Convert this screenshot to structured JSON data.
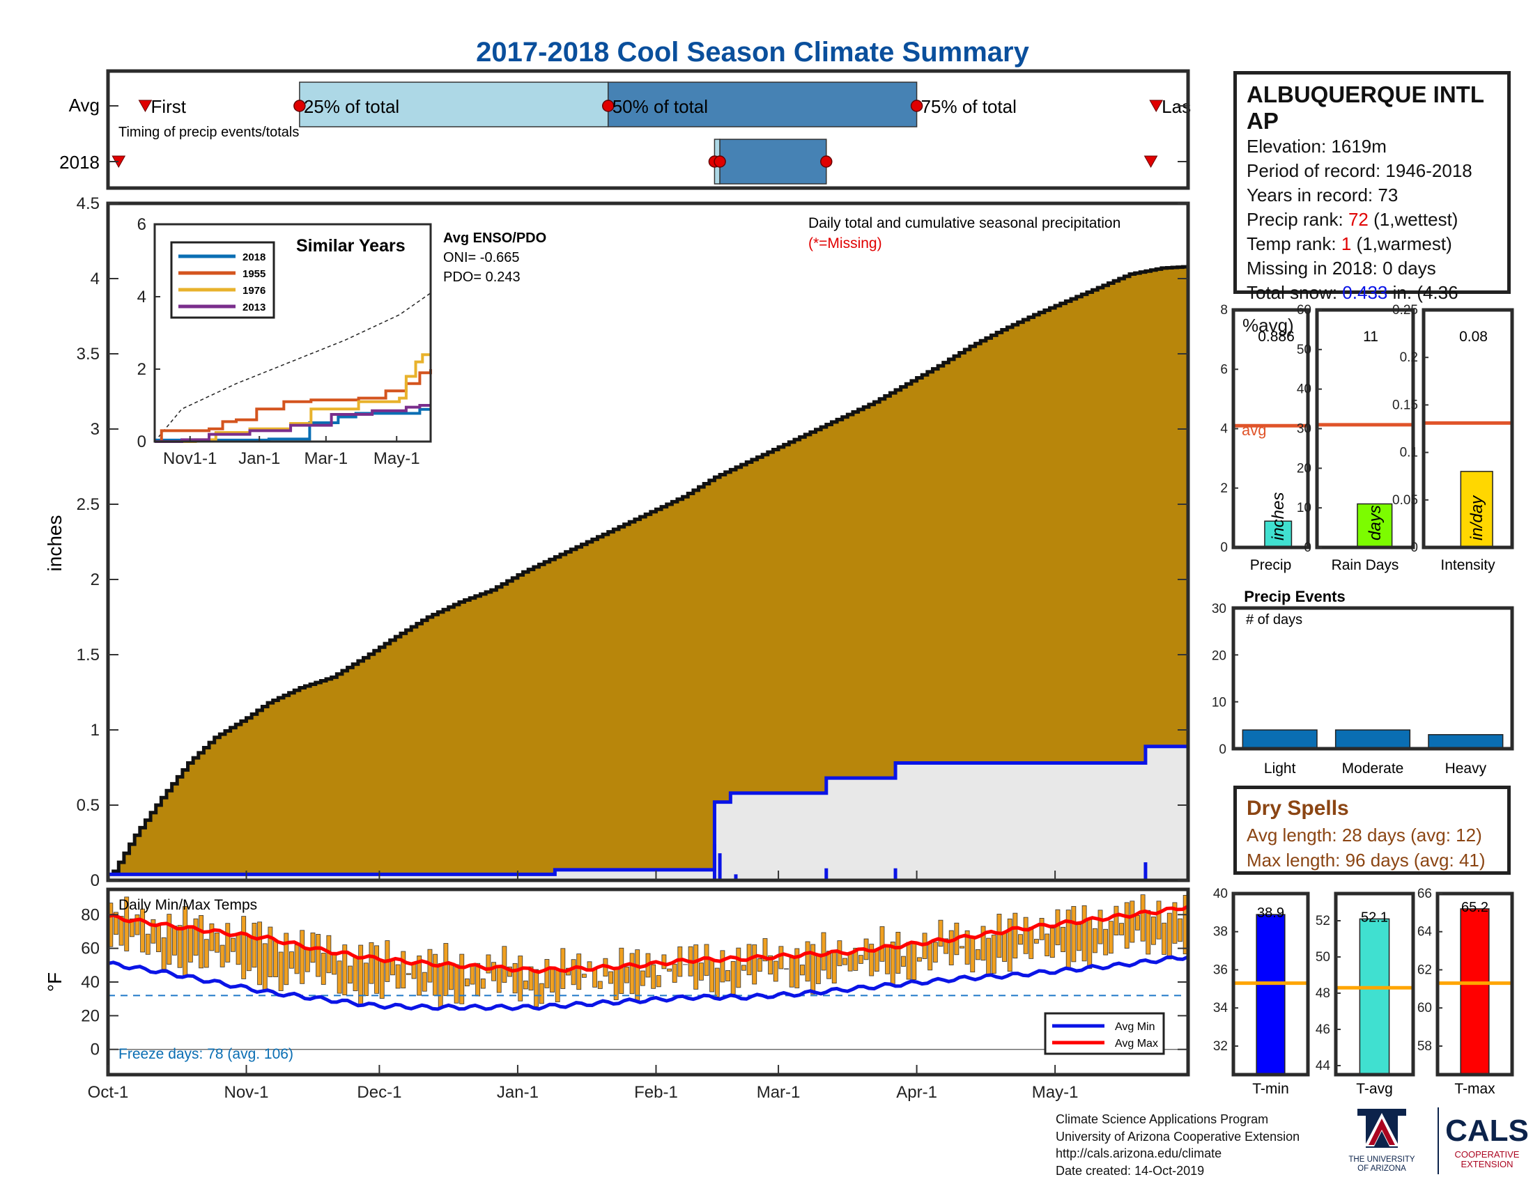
{
  "title": "2017-2018 Cool Season Climate Summary",
  "timing": {
    "row_labels": [
      "Avg",
      "2018"
    ],
    "note": "Timing of precip events/totals",
    "markers": {
      "first": "First",
      "q25": "25% of total",
      "q50": "50% of total",
      "q75": "75% of total",
      "last": "Las"
    },
    "avg_days": {
      "first": 7,
      "q25": 36,
      "q50": 94,
      "q75": 152,
      "last": 197
    },
    "y2018_days": {
      "first": 2,
      "q25": 114,
      "q50": 115,
      "q75": 135,
      "last": 196
    }
  },
  "chart_data": [
    {
      "type": "area",
      "name": "cumulative-precip",
      "ylabel": "inches",
      "ylim": [
        0,
        4.5
      ],
      "yticks": [
        "0",
        "0.5",
        "1",
        "1.5",
        "2",
        "2.5",
        "3",
        "3.5",
        "4",
        "4.5"
      ],
      "xlim": [
        0,
        203
      ],
      "xticks": [
        {
          "label": "Oct-1",
          "day": 0
        },
        {
          "label": "Nov-1",
          "day": 26
        },
        {
          "label": "Dec-1",
          "day": 51
        },
        {
          "label": "Jan-1",
          "day": 77
        },
        {
          "label": "Feb-1",
          "day": 103
        },
        {
          "label": "Mar-1",
          "day": 126
        },
        {
          "label": "Apr-1",
          "day": 152
        },
        {
          "label": "May-1",
          "day": 178
        }
      ],
      "annotation": "Daily total and cumulative seasonal precipitation",
      "missing_note": "(*=Missing)",
      "avg_cumulative": [
        [
          0,
          0
        ],
        [
          5,
          0.3
        ],
        [
          10,
          0.55
        ],
        [
          15,
          0.78
        ],
        [
          20,
          0.95
        ],
        [
          26,
          1.08
        ],
        [
          30,
          1.18
        ],
        [
          36,
          1.28
        ],
        [
          42,
          1.35
        ],
        [
          48,
          1.48
        ],
        [
          54,
          1.62
        ],
        [
          60,
          1.75
        ],
        [
          66,
          1.85
        ],
        [
          72,
          1.93
        ],
        [
          78,
          2.05
        ],
        [
          84,
          2.15
        ],
        [
          90,
          2.25
        ],
        [
          96,
          2.35
        ],
        [
          102,
          2.45
        ],
        [
          108,
          2.55
        ],
        [
          114,
          2.68
        ],
        [
          120,
          2.78
        ],
        [
          126,
          2.88
        ],
        [
          132,
          2.98
        ],
        [
          138,
          3.08
        ],
        [
          144,
          3.18
        ],
        [
          150,
          3.3
        ],
        [
          156,
          3.42
        ],
        [
          162,
          3.55
        ],
        [
          168,
          3.66
        ],
        [
          174,
          3.76
        ],
        [
          180,
          3.85
        ],
        [
          186,
          3.94
        ],
        [
          192,
          4.03
        ],
        [
          198,
          4.07
        ],
        [
          203,
          4.08
        ]
      ],
      "y2018_cumulative": [
        [
          0,
          0.04
        ],
        [
          84,
          0.04
        ],
        [
          84,
          0.07
        ],
        [
          114,
          0.07
        ],
        [
          114,
          0.52
        ],
        [
          117,
          0.52
        ],
        [
          117,
          0.58
        ],
        [
          135,
          0.58
        ],
        [
          135,
          0.68
        ],
        [
          148,
          0.68
        ],
        [
          148,
          0.78
        ],
        [
          195,
          0.78
        ],
        [
          195,
          0.89
        ],
        [
          203,
          0.89
        ]
      ],
      "y2018_daily": [
        [
          114,
          0.24
        ],
        [
          115,
          0.18
        ],
        [
          118,
          0.04
        ],
        [
          135,
          0.08
        ],
        [
          148,
          0.08
        ],
        [
          195,
          0.12
        ]
      ]
    },
    {
      "type": "line",
      "name": "similar-years-inset",
      "title": "Similar Years",
      "ylim": [
        0,
        6
      ],
      "yticks": [
        "0",
        "2",
        "4",
        "6"
      ],
      "xticks": [
        "Nov1-1",
        "Jan-1",
        "Mar-1",
        "May-1"
      ],
      "series": [
        {
          "name": "2018",
          "color": "#0a6eb3",
          "values": [
            [
              0,
              0.04
            ],
            [
              84,
              0.04
            ],
            [
              84,
              0.07
            ],
            [
              114,
              0.07
            ],
            [
              114,
              0.52
            ],
            [
              135,
              0.68
            ],
            [
              148,
              0.78
            ],
            [
              195,
              0.89
            ],
            [
              203,
              0.89
            ]
          ]
        },
        {
          "name": "1955",
          "color": "#d4541e",
          "values": [
            [
              0,
              0
            ],
            [
              5,
              0.3
            ],
            [
              40,
              0.35
            ],
            [
              50,
              0.55
            ],
            [
              60,
              0.6
            ],
            [
              75,
              0.9
            ],
            [
              95,
              1.1
            ],
            [
              115,
              1.15
            ],
            [
              150,
              1.2
            ],
            [
              170,
              1.4
            ],
            [
              185,
              1.6
            ],
            [
              195,
              1.9
            ],
            [
              203,
              2.0
            ]
          ]
        },
        {
          "name": "1976",
          "color": "#e8b22c",
          "values": [
            [
              0,
              0
            ],
            [
              30,
              0.05
            ],
            [
              45,
              0.25
            ],
            [
              70,
              0.35
            ],
            [
              100,
              0.5
            ],
            [
              115,
              0.9
            ],
            [
              150,
              1.1
            ],
            [
              180,
              1.2
            ],
            [
              185,
              1.8
            ],
            [
              192,
              2.2
            ],
            [
              197,
              2.4
            ],
            [
              203,
              2.4
            ]
          ]
        },
        {
          "name": "2013",
          "color": "#7a2e8c",
          "values": [
            [
              0,
              0
            ],
            [
              20,
              0.05
            ],
            [
              40,
              0.2
            ],
            [
              70,
              0.3
            ],
            [
              100,
              0.45
            ],
            [
              130,
              0.75
            ],
            [
              160,
              0.85
            ],
            [
              185,
              0.95
            ],
            [
              195,
              1.0
            ],
            [
              203,
              1.0
            ]
          ]
        }
      ],
      "avg_dashed": [
        [
          0,
          0
        ],
        [
          20,
          0.9
        ],
        [
          60,
          1.6
        ],
        [
          100,
          2.2
        ],
        [
          140,
          2.8
        ],
        [
          180,
          3.5
        ],
        [
          203,
          4.1
        ]
      ],
      "enso_title": "Avg ENSO/PDO",
      "oni": "ONI= -0.665",
      "pdo": "PDO= 0.243"
    },
    {
      "type": "bar",
      "name": "precip-summary",
      "panels": [
        {
          "label": "Precip",
          "unit": "inches",
          "value": 0.886,
          "value_text": "0.886",
          "avg": 4.1,
          "avg_label": "avg",
          "ylim": [
            0,
            8
          ],
          "yticks": [
            "0",
            "2",
            "4",
            "6",
            "8"
          ],
          "color": "#40e0d0"
        },
        {
          "label": "Rain Days",
          "unit": "days",
          "value": 11,
          "value_text": "11",
          "avg": 31,
          "ylim": [
            0,
            60
          ],
          "yticks": [
            "0",
            "10",
            "20",
            "30",
            "40",
            "50",
            "60"
          ],
          "color": "#7cfc00"
        },
        {
          "label": "Intensity",
          "unit": "in/day",
          "value": 0.08,
          "value_text": "0.08",
          "avg": 0.131,
          "ylim": [
            0,
            0.25
          ],
          "yticks": [
            "0",
            "0.05",
            "0.1",
            "0.15",
            "0.2",
            "0.25"
          ],
          "color": "#ffd700"
        }
      ]
    },
    {
      "type": "bar",
      "name": "precip-events",
      "title": "Precip Events",
      "ylabel": "# of days",
      "categories": [
        "Light",
        "Moderate",
        "Heavy"
      ],
      "values": [
        4,
        4,
        3
      ],
      "ylim": [
        0,
        30
      ],
      "yticks": [
        "0",
        "10",
        "20",
        "30"
      ],
      "color": "#0a6eb3"
    },
    {
      "type": "bar",
      "name": "daily-temps",
      "title": "Daily Min/Max Temps",
      "ylabel": "°F",
      "ylim": [
        -15,
        95
      ],
      "yticks": [
        "0",
        "20",
        "40",
        "60",
        "80"
      ],
      "freeze_line": 32,
      "freeze_text": "Freeze days: 78 (avg. 106)",
      "legend": [
        "Avg Min",
        "Avg Max"
      ],
      "avg_min": [
        [
          0,
          51
        ],
        [
          10,
          46
        ],
        [
          20,
          40
        ],
        [
          30,
          34
        ],
        [
          40,
          30
        ],
        [
          50,
          26
        ],
        [
          60,
          25
        ],
        [
          70,
          25
        ],
        [
          80,
          25
        ],
        [
          90,
          27
        ],
        [
          100,
          29
        ],
        [
          110,
          31
        ],
        [
          120,
          31
        ],
        [
          130,
          33
        ],
        [
          140,
          36
        ],
        [
          150,
          39
        ],
        [
          160,
          42
        ],
        [
          170,
          44
        ],
        [
          180,
          47
        ],
        [
          190,
          50
        ],
        [
          200,
          54
        ],
        [
          203,
          55
        ]
      ],
      "avg_max": [
        [
          0,
          79
        ],
        [
          10,
          74
        ],
        [
          20,
          70
        ],
        [
          30,
          66
        ],
        [
          40,
          59
        ],
        [
          50,
          54
        ],
        [
          60,
          51
        ],
        [
          70,
          49
        ],
        [
          80,
          47
        ],
        [
          90,
          48
        ],
        [
          100,
          50
        ],
        [
          110,
          53
        ],
        [
          120,
          54
        ],
        [
          130,
          56
        ],
        [
          140,
          58
        ],
        [
          150,
          62
        ],
        [
          160,
          66
        ],
        [
          170,
          71
        ],
        [
          180,
          75
        ],
        [
          190,
          79
        ],
        [
          200,
          83
        ],
        [
          203,
          85
        ]
      ]
    },
    {
      "type": "bar",
      "name": "temp-summary",
      "panels": [
        {
          "label": "T-min",
          "value": 38.9,
          "value_text": "38.9",
          "avg": 35.3,
          "ylim": [
            30.5,
            40
          ],
          "yticks": [
            "32",
            "34",
            "36",
            "38",
            "40"
          ],
          "color": "#0000ff"
        },
        {
          "label": "T-avg",
          "value": 52.1,
          "value_text": "52.1",
          "avg": 48.3,
          "ylim": [
            43.5,
            53.5
          ],
          "yticks": [
            "44",
            "46",
            "48",
            "50",
            "52"
          ],
          "color": "#40e0d0"
        },
        {
          "label": "T-max",
          "value": 65.2,
          "value_text": "65.2",
          "avg": 61.3,
          "ylim": [
            56.5,
            66
          ],
          "yticks": [
            "58",
            "60",
            "62",
            "64",
            "66"
          ],
          "color": "#ff0000"
        }
      ]
    }
  ],
  "station": {
    "name": "ALBUQUERQUE INTL AP",
    "elevation": "Elevation: 1619m",
    "period": "Period of record: 1946-2018",
    "years": "Years in record: 73",
    "precip_rank_label": "Precip rank: ",
    "precip_rank_value": "72",
    "precip_rank_note": " (1,wettest)",
    "temp_rank_label": "Temp rank: ",
    "temp_rank_value": "1",
    "temp_rank_note": " (1,warmest)",
    "missing": "Missing in 2018: 0 days",
    "snow_label": "Total snow: ",
    "snow_value": "0.433",
    "snow_note": " in. (4.36",
    "snow_note2": "%avg)"
  },
  "dry_spells": {
    "title": "Dry Spells",
    "avg_length": "Avg length: 28 days (avg: 12)",
    "max_length": "Max length: 96 days (avg: 41)"
  },
  "footer": {
    "line1": "Climate Science Applications Program",
    "line2": "University of Arizona Cooperative Extension",
    "line3": "http://cals.arizona.edu/climate",
    "line4": " Date created: 14-Oct-2019"
  },
  "logos": {
    "ua": "THE UNIVERSITY OF ARIZONA",
    "ua_line1": "THE UNIVERSITY",
    "ua_line2": "OF ARIZONA",
    "cals": "CALS",
    "cals_sub1": "COOPERATIVE",
    "cals_sub2": "EXTENSION"
  },
  "colors": {
    "avg_fill": "#b8860b",
    "y2018_fill": "#e8e8e8",
    "y2018_line": "#0a14e6",
    "title": "#0a4f9c",
    "temp_bar": "#f0a020",
    "avg_line": "#e0542a",
    "marker": "#e00000",
    "q_light": "#add8e6",
    "q_dark": "#4682b4"
  }
}
